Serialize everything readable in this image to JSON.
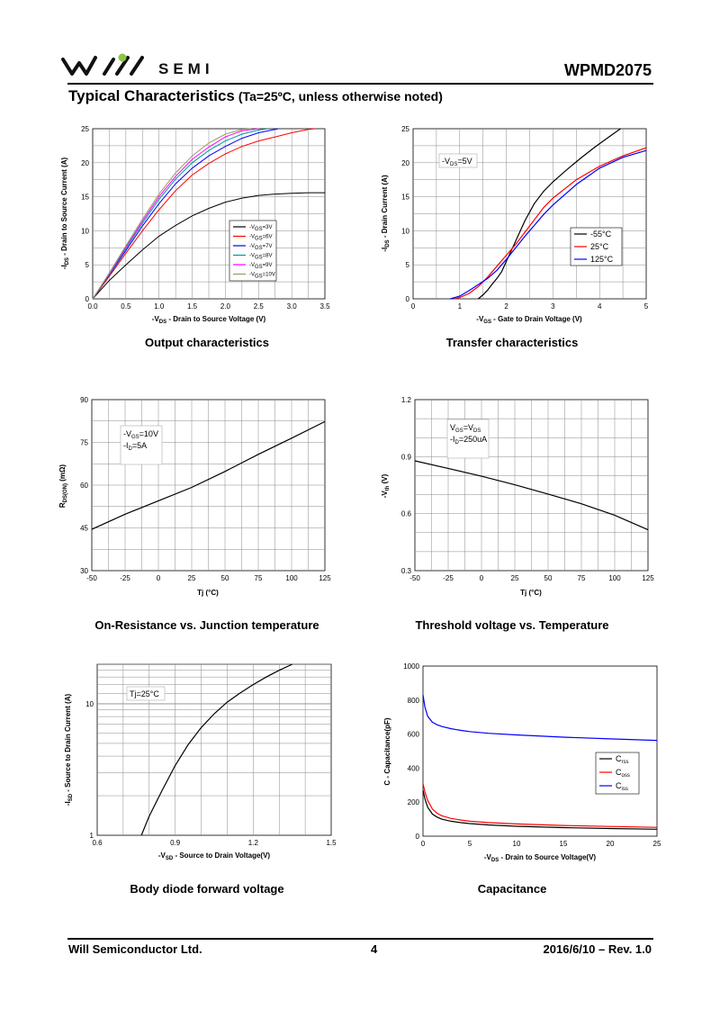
{
  "header": {
    "brand": "SEMI",
    "part_number": "WPMD2075",
    "section_title": "Typical Characteristics",
    "section_condition": "(Ta=25ºC, unless otherwise noted)"
  },
  "footer": {
    "company": "Will Semiconductor Ltd.",
    "page": "4",
    "date_rev": "2016/6/10 – Rev. 1.0"
  },
  "captions": {
    "output": "Output characteristics",
    "transfer": "Transfer characteristics",
    "ron": "On-Resistance vs. Junction temperature",
    "vth": "Threshold voltage vs. Temperature",
    "diode": "Body diode forward voltage",
    "cap": "Capacitance"
  },
  "chart_data": [
    {
      "id": "output",
      "type": "line",
      "xlabel": "-V_DS - Drain to Source Voltage (V)",
      "ylabel": "-I_DS - Drain to Source Current (A)",
      "xlim": [
        0,
        3.5
      ],
      "ylim": [
        0,
        25
      ],
      "xticks": [
        "0.0",
        "0.5",
        "1.0",
        "1.5",
        "2.0",
        "2.5",
        "3.0",
        "3.5"
      ],
      "yticks": [
        "0",
        "5",
        "10",
        "15",
        "20",
        "25"
      ],
      "grid": true,
      "legend": "center-right",
      "series": [
        {
          "name": "-V_GS=3V",
          "color": "#000000",
          "x": [
            0,
            0.25,
            0.5,
            0.75,
            1.0,
            1.25,
            1.5,
            1.75,
            2.0,
            2.25,
            2.5,
            2.75,
            3.0,
            3.25,
            3.5
          ],
          "y": [
            0,
            2.7,
            5.0,
            7.2,
            9.2,
            10.8,
            12.2,
            13.3,
            14.2,
            14.8,
            15.2,
            15.4,
            15.5,
            15.6,
            15.6
          ]
        },
        {
          "name": "-V_GS=6V",
          "color": "#ff0000",
          "x": [
            0,
            0.25,
            0.5,
            0.75,
            1.0,
            1.25,
            1.5,
            1.75,
            2.0,
            2.25,
            2.5,
            2.75,
            3.0,
            3.25,
            3.35
          ],
          "y": [
            0,
            3.3,
            6.7,
            10.0,
            13.1,
            15.9,
            18.2,
            19.9,
            21.3,
            22.4,
            23.2,
            23.8,
            24.4,
            24.9,
            25
          ]
        },
        {
          "name": "-V_GS=7V",
          "color": "#0000ff",
          "x": [
            0,
            0.25,
            0.5,
            0.75,
            1.0,
            1.25,
            1.5,
            1.75,
            2.0,
            2.25,
            2.5,
            2.8
          ],
          "y": [
            0,
            3.5,
            7.1,
            10.7,
            14.0,
            16.9,
            19.2,
            21.0,
            22.4,
            23.6,
            24.4,
            25
          ]
        },
        {
          "name": "-V_GS=8V",
          "color": "#009999",
          "x": [
            0,
            0.25,
            0.5,
            0.75,
            1.0,
            1.25,
            1.5,
            1.75,
            2.0,
            2.25,
            2.5,
            2.65
          ],
          "y": [
            0,
            3.6,
            7.4,
            11.1,
            14.6,
            17.6,
            20.0,
            21.8,
            23.2,
            24.2,
            24.8,
            25
          ]
        },
        {
          "name": "-V_GS=9V",
          "color": "#ff00ff",
          "x": [
            0,
            0.25,
            0.5,
            0.75,
            1.0,
            1.25,
            1.5,
            1.75,
            2.0,
            2.25,
            2.5
          ],
          "y": [
            0,
            3.7,
            7.6,
            11.4,
            15.0,
            18.0,
            20.5,
            22.3,
            23.8,
            24.7,
            25
          ]
        },
        {
          "name": "-V_GS=10V",
          "color": "#999966",
          "x": [
            0,
            0.25,
            0.5,
            0.75,
            1.0,
            1.25,
            1.5,
            1.75,
            2.0,
            2.25,
            2.4
          ],
          "y": [
            0,
            3.8,
            7.8,
            11.7,
            15.4,
            18.5,
            21.0,
            22.9,
            24.2,
            24.9,
            25
          ]
        }
      ]
    },
    {
      "id": "transfer",
      "type": "line",
      "xlabel": "-V_GS - Gate to Drain Voltage (V)",
      "ylabel": "-I_DS - Drain Current (A)",
      "xlim": [
        0,
        5
      ],
      "ylim": [
        0,
        25
      ],
      "xticks": [
        "0",
        "1",
        "2",
        "3",
        "4",
        "5"
      ],
      "yticks": [
        "0",
        "5",
        "10",
        "15",
        "20",
        "25"
      ],
      "grid": true,
      "legend": "center-right",
      "annotation": "-V_DS=5V",
      "series": [
        {
          "name": "-55°C",
          "color": "#000000",
          "x": [
            1.4,
            1.5,
            1.6,
            1.7,
            1.8,
            1.9,
            2.0,
            2.2,
            2.4,
            2.6,
            2.8,
            3.0,
            3.3,
            3.6,
            3.9,
            4.2,
            4.45
          ],
          "y": [
            0,
            0.6,
            1.3,
            2.2,
            3.0,
            4.0,
            5.5,
            8.5,
            11.5,
            14.0,
            15.8,
            17.2,
            19.0,
            20.7,
            22.3,
            23.8,
            25
          ]
        },
        {
          "name": "25°C",
          "color": "#ff0000",
          "x": [
            0.9,
            1.0,
            1.2,
            1.4,
            1.6,
            1.8,
            2.0,
            2.2,
            2.4,
            2.6,
            2.8,
            3.0,
            3.5,
            4.0,
            4.5,
            5.0
          ],
          "y": [
            0,
            0.2,
            0.8,
            1.8,
            3.2,
            4.8,
            6.4,
            8.0,
            9.8,
            11.6,
            13.4,
            14.8,
            17.5,
            19.5,
            21.0,
            22.2
          ]
        },
        {
          "name": "125°C",
          "color": "#0000ff",
          "x": [
            0.8,
            1.0,
            1.2,
            1.4,
            1.6,
            1.8,
            2.0,
            2.2,
            2.4,
            2.6,
            2.8,
            3.0,
            3.5,
            4.0,
            4.5,
            5.0
          ],
          "y": [
            0,
            0.4,
            1.2,
            2.1,
            3.0,
            4.2,
            5.8,
            7.5,
            9.2,
            10.8,
            12.4,
            13.8,
            16.8,
            19.2,
            20.8,
            21.8
          ]
        }
      ]
    },
    {
      "id": "ron",
      "type": "line",
      "xlabel": "Tj (°C)",
      "ylabel": "R_DS(ON) (mΩ)",
      "xlim": [
        -50,
        125
      ],
      "ylim": [
        30,
        90
      ],
      "xticks": [
        "-50",
        "-25",
        "0",
        "25",
        "50",
        "75",
        "100",
        "125"
      ],
      "yticks": [
        "30",
        "45",
        "60",
        "75",
        "90"
      ],
      "grid": true,
      "annotation_lines": [
        "-V_GS=10V",
        "-I_D=5A"
      ],
      "series": [
        {
          "name": "",
          "color": "#000000",
          "x": [
            -50,
            -25,
            0,
            25,
            50,
            75,
            100,
            125
          ],
          "y": [
            44.5,
            49.8,
            54.5,
            59.2,
            64.8,
            70.8,
            76.5,
            82.3
          ]
        }
      ]
    },
    {
      "id": "vth",
      "type": "line",
      "xlabel": "Tj (°C)",
      "ylabel": "-V_th (V)",
      "xlim": [
        -50,
        125
      ],
      "ylim": [
        0.3,
        1.2
      ],
      "xticks": [
        "-50",
        "-25",
        "0",
        "25",
        "50",
        "75",
        "100",
        "125"
      ],
      "yticks": [
        "0.3",
        "0.6",
        "0.9",
        "1.2"
      ],
      "grid": true,
      "annotation_lines": [
        "V_GS=V_DS",
        "-I_D=250uA"
      ],
      "series": [
        {
          "name": "",
          "color": "#000000",
          "x": [
            -50,
            -25,
            0,
            25,
            50,
            75,
            100,
            125
          ],
          "y": [
            0.878,
            0.838,
            0.797,
            0.752,
            0.703,
            0.652,
            0.592,
            0.515
          ]
        }
      ]
    },
    {
      "id": "diode",
      "type": "line",
      "xlabel": "-V_SD - Source to Drain Voltage(V)",
      "ylabel": "-I_SD - Source to Drain Current (A)",
      "xlim": [
        0.6,
        1.5
      ],
      "ylim": [
        1,
        20
      ],
      "yscale": "log",
      "xticks": [
        "0.6",
        "0.9",
        "1.2",
        "1.5"
      ],
      "yticks": [
        "1",
        "10"
      ],
      "grid": true,
      "annotation": "Tj=25°C",
      "series": [
        {
          "name": "",
          "color": "#000000",
          "x": [
            0.77,
            0.8,
            0.85,
            0.9,
            0.95,
            1.0,
            1.05,
            1.1,
            1.15,
            1.2,
            1.25,
            1.3,
            1.35
          ],
          "y": [
            1.0,
            1.4,
            2.2,
            3.4,
            4.9,
            6.6,
            8.4,
            10.3,
            12.1,
            14.0,
            16.0,
            18.0,
            20.0
          ]
        }
      ]
    },
    {
      "id": "cap",
      "type": "line",
      "xlabel": "-V_DS - Drain to Source Voltage(V)",
      "ylabel": "C - Capacitance(pF)",
      "xlim": [
        0,
        25
      ],
      "ylim": [
        0,
        1000
      ],
      "xticks": [
        "0",
        "5",
        "10",
        "15",
        "20",
        "25"
      ],
      "yticks": [
        "0",
        "200",
        "400",
        "600",
        "800",
        "1000"
      ],
      "grid": false,
      "legend": "center-right",
      "series": [
        {
          "name": "C_rss",
          "color": "#000000",
          "x": [
            0,
            0.2,
            0.5,
            1,
            1.5,
            2,
            3,
            4,
            5,
            7,
            10,
            15,
            20,
            25
          ],
          "y": [
            270,
            220,
            170,
            130,
            112,
            100,
            88,
            80,
            74,
            66,
            58,
            50,
            45,
            41
          ]
        },
        {
          "name": "C_oss",
          "color": "#ff0000",
          "x": [
            0,
            0.2,
            0.5,
            1,
            1.5,
            2,
            3,
            4,
            5,
            7,
            10,
            15,
            20,
            25
          ],
          "y": [
            310,
            260,
            210,
            160,
            135,
            120,
            104,
            95,
            88,
            80,
            72,
            63,
            57,
            52
          ]
        },
        {
          "name": "C_iss",
          "color": "#0000ff",
          "x": [
            0,
            0.2,
            0.5,
            1,
            1.5,
            2,
            3,
            4,
            5,
            7,
            10,
            15,
            20,
            25
          ],
          "y": [
            830,
            760,
            705,
            670,
            655,
            645,
            632,
            622,
            615,
            605,
            595,
            582,
            572,
            563
          ]
        }
      ]
    }
  ]
}
